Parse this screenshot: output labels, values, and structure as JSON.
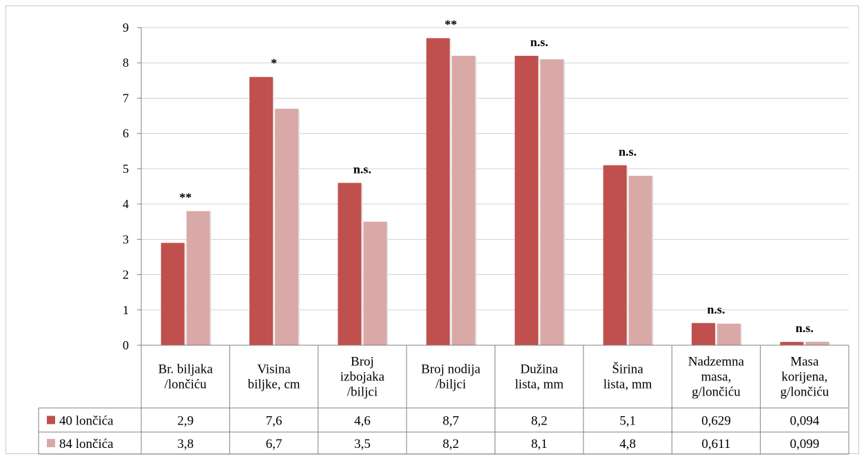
{
  "chart_data": {
    "type": "bar",
    "ylim": [
      0,
      9
    ],
    "yticks": [
      "0",
      "1",
      "2",
      "3",
      "4",
      "5",
      "6",
      "7",
      "8",
      "9"
    ],
    "grid": true,
    "legend_placement": "data-table",
    "colors": {
      "series1": "#c0504d",
      "series2": "#d9a9a8"
    },
    "categories": [
      "Br. biljaka /lončiću",
      "Visina biljke, cm",
      "Broj izbojaka /biljci",
      "Broj nodija /biljci",
      "Dužina lista, mm",
      "Širina lista, mm",
      "Nadzemna masa, g/lončiću",
      "Masa korijena, g/lončiću"
    ],
    "category_lines": [
      [
        "Br. biljaka",
        "/lončiću"
      ],
      [
        "Visina",
        "biljke, cm"
      ],
      [
        "Broj",
        "izbojaka",
        "/biljci"
      ],
      [
        "Broj nodija",
        "/biljci"
      ],
      [
        "Dužina",
        "lista, mm"
      ],
      [
        "Širina",
        "lista, mm"
      ],
      [
        "Nadzemna",
        "masa,",
        "g/lončiću"
      ],
      [
        "Masa",
        "korijena,",
        "g/lončiću"
      ]
    ],
    "series": [
      {
        "name": "40 lončića",
        "values": [
          2.9,
          7.6,
          4.6,
          8.7,
          8.2,
          5.1,
          0.629,
          0.094
        ],
        "labels": [
          "2,9",
          "7,6",
          "4,6",
          "8,7",
          "8,2",
          "5,1",
          "0,629",
          "0,094"
        ]
      },
      {
        "name": "84 lončića",
        "values": [
          3.8,
          6.7,
          3.5,
          8.2,
          8.1,
          4.8,
          0.611,
          0.099
        ],
        "labels": [
          "3,8",
          "6,7",
          "3,5",
          "8,2",
          "8,1",
          "4,8",
          "0,611",
          "0,099"
        ]
      }
    ],
    "annotations": [
      "**",
      "*",
      "n.s.",
      "**",
      "n.s.",
      "n.s.",
      "n.s.",
      "n.s."
    ]
  }
}
